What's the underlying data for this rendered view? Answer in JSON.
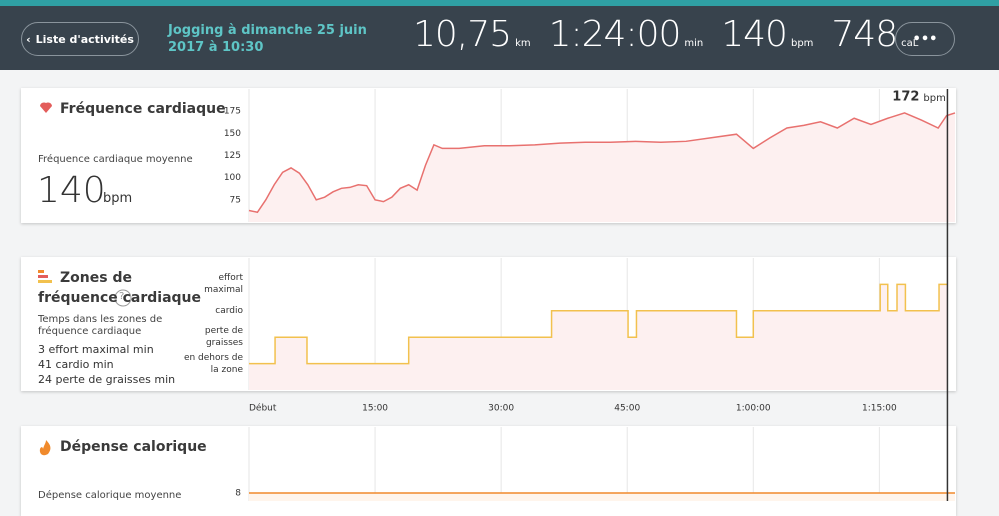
{
  "header": {
    "back_button": "Liste d'activités",
    "title": "Jogging à dimanche 25 juin 2017 à 10:30",
    "stats": [
      {
        "value": "10,75",
        "unit": "km"
      },
      {
        "value": "1:24:00",
        "unit": "min"
      },
      {
        "value": "140",
        "unit": "bpm"
      },
      {
        "value": "748",
        "unit": "caL"
      }
    ],
    "more_button": "•••"
  },
  "heart_panel": {
    "title": "Fréquence cardiaque",
    "avg_label": "Fréquence cardiaque moyenne",
    "avg_value": "140",
    "avg_unit": "bpm"
  },
  "zones_panel": {
    "title": "Zones de fréquence cardiaque",
    "help": "?",
    "subtitle": "Temps dans les zones de fréquence cardiaque",
    "items": [
      "3 effort maximal min",
      "41 cardio min",
      "24 perte de graisses min"
    ]
  },
  "calorie_panel": {
    "title": "Dépense calorique",
    "avg_label": "Dépense calorique moyenne"
  },
  "chart_data": [
    {
      "type": "line",
      "x": [
        0,
        1,
        2,
        3,
        4,
        5,
        6,
        7,
        8,
        9,
        10,
        11,
        12,
        13,
        14,
        15,
        16,
        17,
        18,
        19,
        20,
        21,
        22,
        23,
        25,
        28,
        31,
        34,
        37,
        40,
        43,
        46,
        49,
        52,
        55,
        58,
        60,
        62,
        64,
        66,
        68,
        70,
        72,
        74,
        76,
        78,
        80,
        82,
        83,
        84
      ],
      "series": [
        {
          "color": "#e8716f",
          "values": [
            63,
            61,
            75,
            92,
            106,
            111,
            105,
            92,
            75,
            78,
            84,
            88,
            89,
            92,
            91,
            75,
            73,
            78,
            88,
            92,
            86,
            114,
            137,
            133,
            133,
            136,
            136,
            137,
            139,
            140,
            140,
            141,
            140,
            141,
            145,
            149,
            133,
            145,
            156,
            159,
            163,
            156,
            167,
            160,
            167,
            173,
            165,
            156,
            170,
            173
          ]
        }
      ],
      "xlim": [
        0,
        84
      ],
      "ylim": [
        50,
        200
      ],
      "yticks": [
        75,
        100,
        125,
        150,
        175
      ],
      "marker_x": 83.1,
      "marker_label": "172",
      "marker_unit": "bpm"
    },
    {
      "type": "step",
      "x": [
        0,
        3.1,
        6.9,
        19,
        36,
        45.1,
        46.1,
        58,
        60,
        75.1,
        76,
        77.1,
        78.1,
        82.1,
        83.1
      ],
      "series": [
        {
          "color": "#f2c14e",
          "values": [
            0,
            1,
            0,
            1,
            2,
            1,
            2,
            1,
            2,
            3,
            2,
            3,
            2,
            3,
            3
          ]
        }
      ],
      "xlim": [
        0,
        84
      ],
      "ylim": [
        -1,
        4
      ],
      "yticks": [
        {
          "value": 3,
          "label": "effort maximal"
        },
        {
          "value": 2,
          "label": "cardio"
        },
        {
          "value": 1,
          "label": "perte de graisses"
        },
        {
          "value": 0,
          "label": "en dehors de la zone"
        }
      ],
      "xticks": [
        {
          "value": 0,
          "label": "Début"
        },
        {
          "value": 15,
          "label": "15:00"
        },
        {
          "value": 30,
          "label": "30:00"
        },
        {
          "value": 45,
          "label": "45:00"
        },
        {
          "value": 60,
          "label": "1:00:00"
        },
        {
          "value": 75,
          "label": "1:15:00"
        }
      ]
    },
    {
      "type": "line",
      "x": [
        0,
        84
      ],
      "series": [
        {
          "color": "#f08a2c",
          "values": [
            8,
            8
          ]
        }
      ],
      "xlim": [
        0,
        84
      ],
      "ylim": [
        0,
        16
      ],
      "yticks": [
        8
      ]
    }
  ]
}
